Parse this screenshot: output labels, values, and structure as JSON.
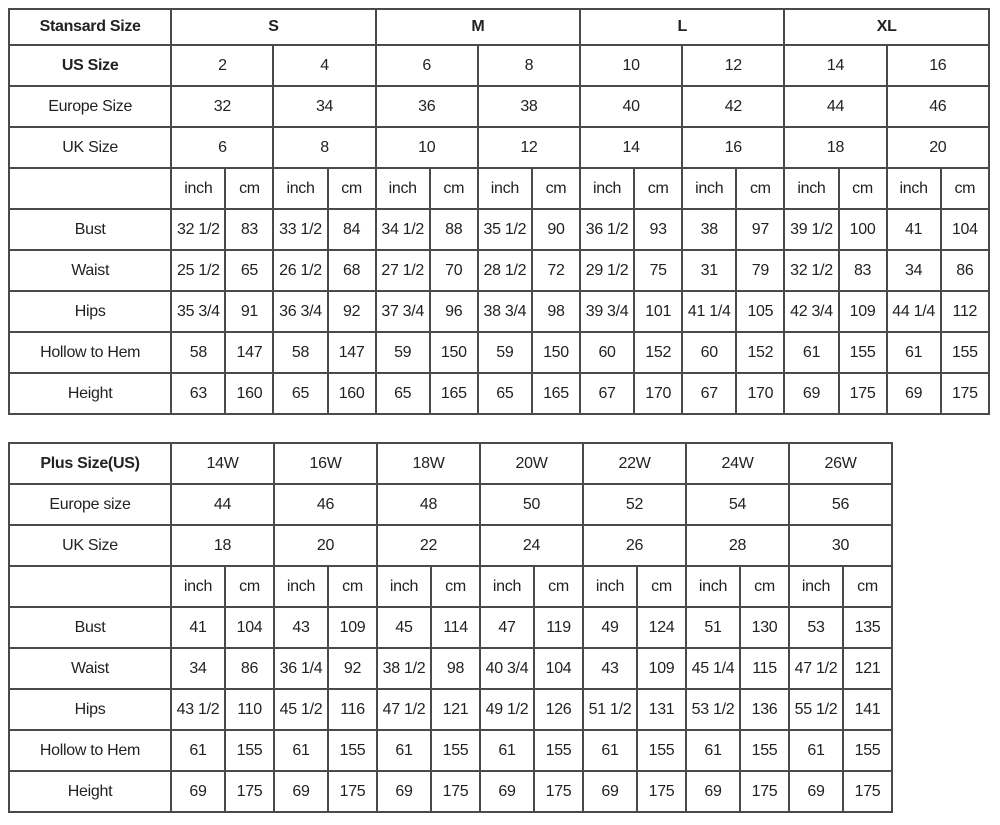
{
  "standard": {
    "header_label": "Stansard Size",
    "groups": [
      "S",
      "M",
      "L",
      "XL"
    ],
    "us_label": "US Size",
    "us": [
      "2",
      "4",
      "6",
      "8",
      "10",
      "12",
      "14",
      "16"
    ],
    "europe_label": "Europe Size",
    "europe": [
      "32",
      "34",
      "36",
      "38",
      "40",
      "42",
      "44",
      "46"
    ],
    "uk_label": "UK Size",
    "uk": [
      "6",
      "8",
      "10",
      "12",
      "14",
      "16",
      "18",
      "20"
    ],
    "unit_inch": "inch",
    "unit_cm": "cm",
    "measurements": [
      {
        "label": "Bust",
        "values": [
          "32 1/2",
          "83",
          "33 1/2",
          "84",
          "34 1/2",
          "88",
          "35 1/2",
          "90",
          "36 1/2",
          "93",
          "38",
          "97",
          "39 1/2",
          "100",
          "41",
          "104"
        ]
      },
      {
        "label": "Waist",
        "values": [
          "25 1/2",
          "65",
          "26 1/2",
          "68",
          "27 1/2",
          "70",
          "28 1/2",
          "72",
          "29 1/2",
          "75",
          "31",
          "79",
          "32 1/2",
          "83",
          "34",
          "86"
        ]
      },
      {
        "label": "Hips",
        "values": [
          "35 3/4",
          "91",
          "36 3/4",
          "92",
          "37 3/4",
          "96",
          "38 3/4",
          "98",
          "39 3/4",
          "101",
          "41 1/4",
          "105",
          "42 3/4",
          "109",
          "44 1/4",
          "112"
        ]
      },
      {
        "label": "Hollow to Hem",
        "values": [
          "58",
          "147",
          "58",
          "147",
          "59",
          "150",
          "59",
          "150",
          "60",
          "152",
          "60",
          "152",
          "61",
          "155",
          "61",
          "155"
        ]
      },
      {
        "label": "Height",
        "values": [
          "63",
          "160",
          "65",
          "160",
          "65",
          "165",
          "65",
          "165",
          "67",
          "170",
          "67",
          "170",
          "69",
          "175",
          "69",
          "175"
        ]
      }
    ]
  },
  "plus": {
    "header_label": "Plus Size(US)",
    "sizes": [
      "14W",
      "16W",
      "18W",
      "20W",
      "22W",
      "24W",
      "26W"
    ],
    "europe_label": "Europe size",
    "europe": [
      "44",
      "46",
      "48",
      "50",
      "52",
      "54",
      "56"
    ],
    "uk_label": "UK Size",
    "uk": [
      "18",
      "20",
      "22",
      "24",
      "26",
      "28",
      "30"
    ],
    "unit_inch": "inch",
    "unit_cm": "cm",
    "measurements": [
      {
        "label": "Bust",
        "values": [
          "41",
          "104",
          "43",
          "109",
          "45",
          "114",
          "47",
          "119",
          "49",
          "124",
          "51",
          "130",
          "53",
          "135"
        ]
      },
      {
        "label": "Waist",
        "values": [
          "34",
          "86",
          "36 1/4",
          "92",
          "38 1/2",
          "98",
          "40 3/4",
          "104",
          "43",
          "109",
          "45 1/4",
          "115",
          "47 1/2",
          "121"
        ]
      },
      {
        "label": "Hips",
        "values": [
          "43 1/2",
          "110",
          "45 1/2",
          "116",
          "47 1/2",
          "121",
          "49 1/2",
          "126",
          "51 1/2",
          "131",
          "53 1/2",
          "136",
          "55 1/2",
          "141"
        ]
      },
      {
        "label": "Hollow to Hem",
        "values": [
          "61",
          "155",
          "61",
          "155",
          "61",
          "155",
          "61",
          "155",
          "61",
          "155",
          "61",
          "155",
          "61",
          "155"
        ]
      },
      {
        "label": "Height",
        "values": [
          "69",
          "175",
          "69",
          "175",
          "69",
          "175",
          "69",
          "175",
          "69",
          "175",
          "69",
          "175",
          "69",
          "175"
        ]
      }
    ]
  }
}
